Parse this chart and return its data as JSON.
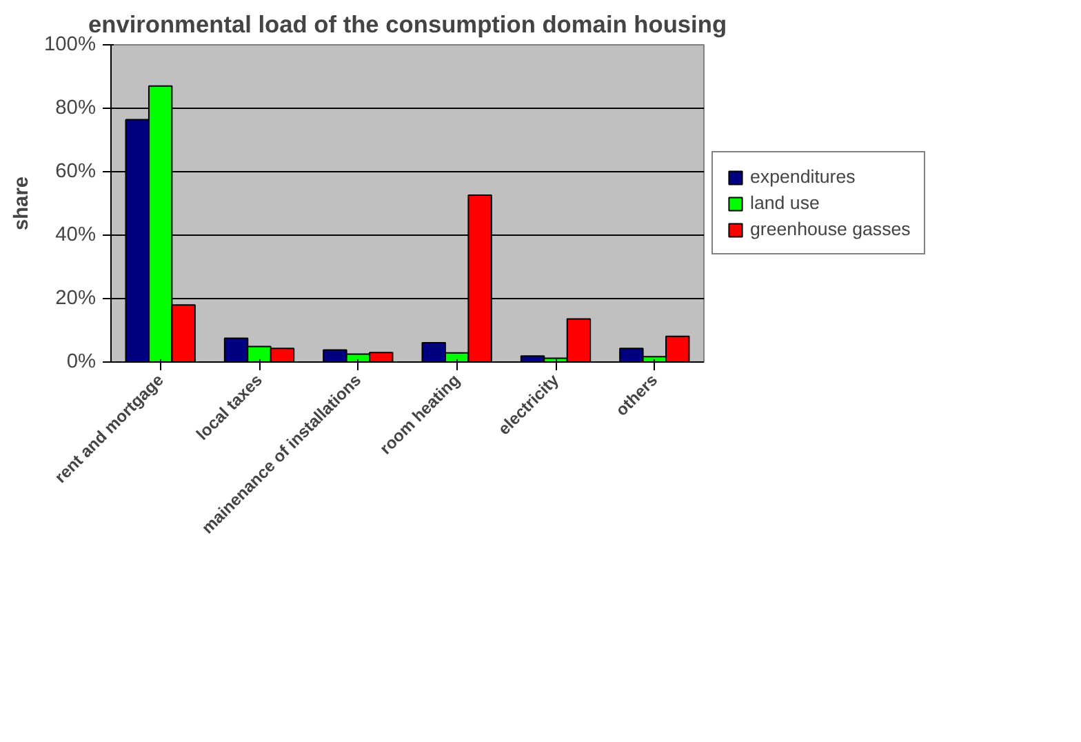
{
  "chart_data": {
    "type": "bar",
    "title": "environmental load of the consumption domain housing",
    "ylabel": "share",
    "categories": [
      "rent and mortgage",
      "local taxes",
      "mainenance of installations",
      "room heating",
      "electricity",
      "others"
    ],
    "series": [
      {
        "name": "expenditures",
        "color": "#000080",
        "values": [
          76.4,
          7.5,
          3.8,
          6.1,
          1.9,
          4.3
        ]
      },
      {
        "name": "land use",
        "color": "#00ff00",
        "values": [
          87,
          4.9,
          2.5,
          2.9,
          1.2,
          1.7
        ]
      },
      {
        "name": "greenhouse gasses",
        "color": "#ff0000",
        "values": [
          18,
          4.3,
          3.0,
          52.6,
          13.6,
          8.1
        ]
      }
    ],
    "ylim": [
      0,
      100
    ],
    "yticks": [
      {
        "value": 0,
        "label": "0%"
      },
      {
        "value": 20,
        "label": "20%"
      },
      {
        "value": 40,
        "label": "40%"
      },
      {
        "value": 60,
        "label": "60%"
      },
      {
        "value": 80,
        "label": "80%"
      },
      {
        "value": 100,
        "label": "100%"
      }
    ],
    "grid": "y",
    "legend": "right"
  }
}
